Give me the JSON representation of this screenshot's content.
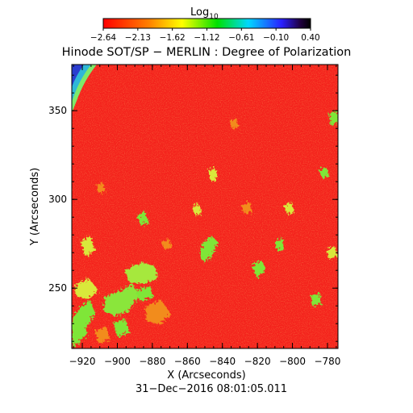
{
  "colorbar": {
    "label_main": "Log",
    "label_sub": "10",
    "tick_labels": [
      "−2.64",
      "−2.13",
      "−1.62",
      "−1.12",
      "−0.61",
      "−0.10",
      "0.40"
    ],
    "stops": [
      "#ff0000",
      "#ff8000",
      "#ffff00",
      "#00ff00",
      "#00ffff",
      "#0000ff",
      "#000000"
    ]
  },
  "title": "Hinode SOT/SP − MERLIN : Degree of Polarization",
  "image_colors": {
    "background": "#f4221c",
    "patch_green": "#7fe637",
    "patch_yellow": "#d9e83a",
    "patch_orange": "#f28c1f",
    "limb": [
      "#2a3dcf",
      "#2fb7d8",
      "#7ee96a"
    ]
  },
  "x_axis": {
    "label": "X (Arcseconds)",
    "range": [
      -926,
      -774
    ],
    "ticks": [
      -920,
      -900,
      -880,
      -860,
      -840,
      -820,
      -800,
      -780
    ],
    "tick_labels": [
      "−920",
      "−900",
      "−880",
      "−860",
      "−840",
      "−820",
      "−800",
      "−780"
    ]
  },
  "y_axis": {
    "label": "Y (Arcseconds)",
    "range": [
      216,
      376
    ],
    "ticks": [
      250,
      300,
      350
    ],
    "tick_labels": [
      "250",
      "300",
      "350"
    ]
  },
  "timestamp": "31−Dec−2016 08:01:05.011"
}
